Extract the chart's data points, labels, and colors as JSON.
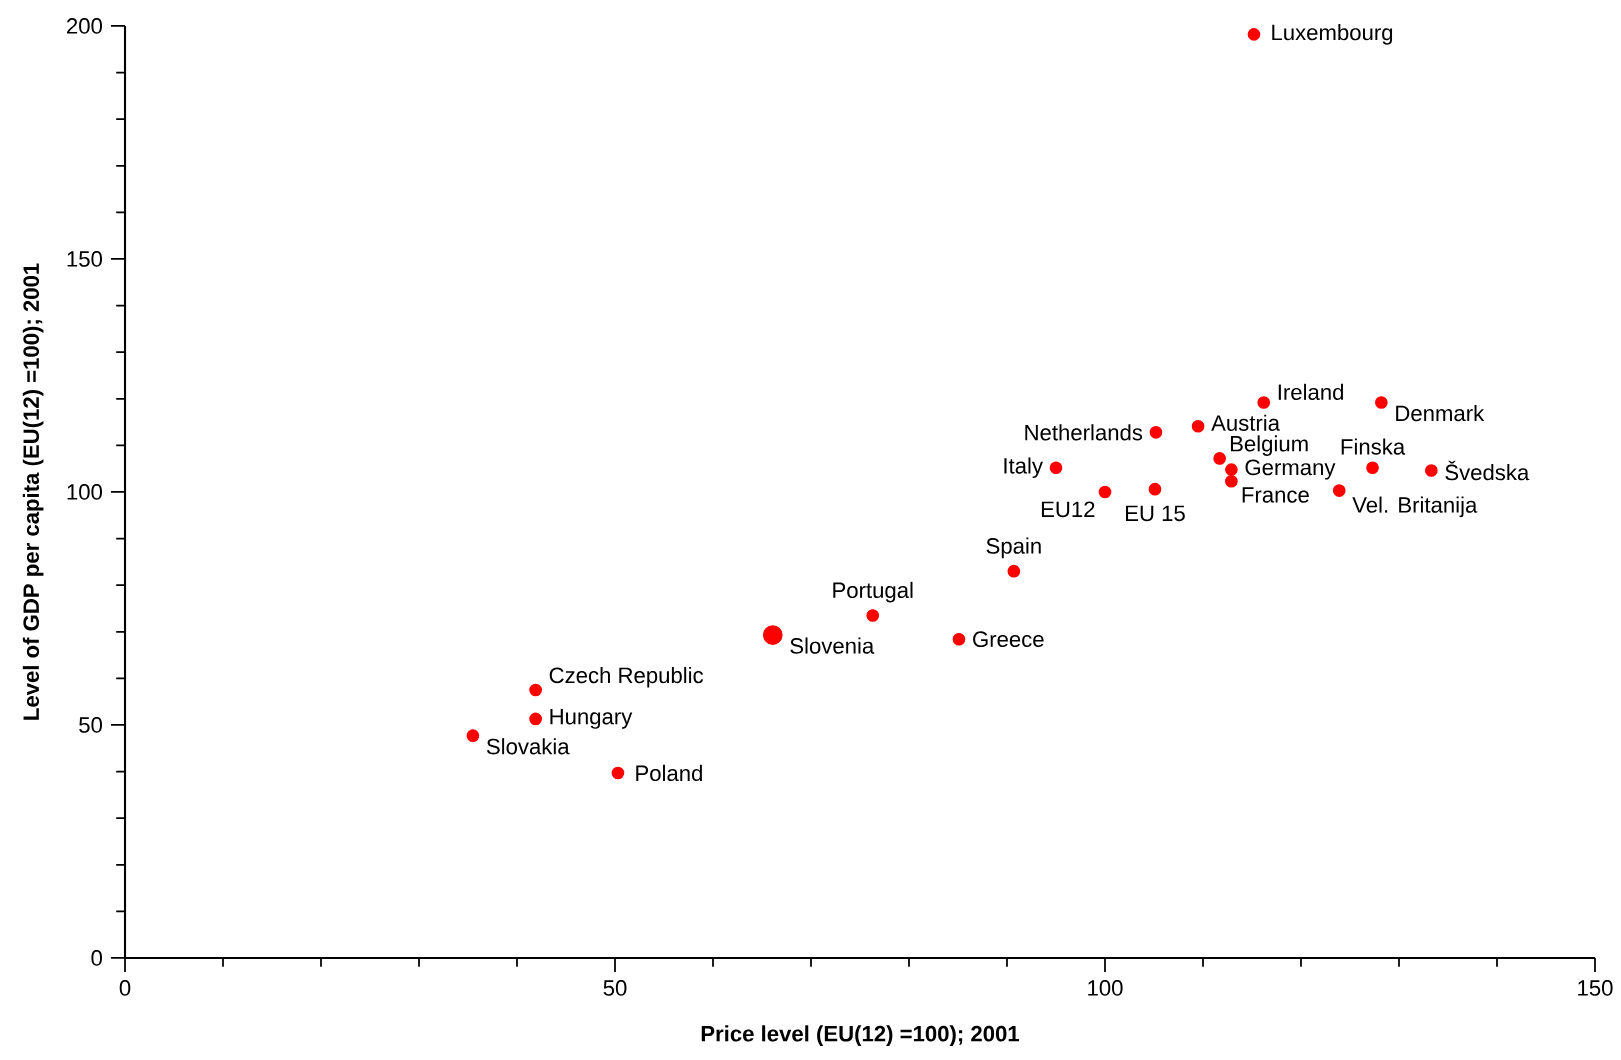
{
  "chart_data": {
    "type": "scatter",
    "xlabel": "Price level (EU(12) =100); 2001",
    "ylabel": "Level of GDP per capita (EU(12) =100); 2001",
    "xlim": [
      0,
      150
    ],
    "ylim": [
      0,
      200
    ],
    "xticks": [
      0,
      50,
      100,
      150
    ],
    "yticks": [
      0,
      50,
      100,
      150,
      200
    ],
    "grid": false,
    "series": [
      {
        "color": "#ff0000",
        "x": [
          115.2,
          116.2,
          128.2,
          105.2,
          109.5,
          111.7,
          112.9,
          112.9,
          127.3,
          133.3,
          123.9,
          95.0,
          100.0,
          105.1,
          90.7,
          76.3,
          85.1,
          41.9,
          41.9,
          35.5,
          50.3
        ],
        "values": [
          198.2,
          119.2,
          119.2,
          112.8,
          114.1,
          107.2,
          104.8,
          102.3,
          105.2,
          104.6,
          100.3,
          105.2,
          100.0,
          100.6,
          83.0,
          73.5,
          68.4,
          57.5,
          51.3,
          47.7,
          39.7
        ]
      },
      {
        "color": "#ff0000",
        "x": [
          66.1
        ],
        "values": [
          69.3
        ]
      }
    ],
    "annotations": [
      {
        "text": "Luxembourg",
        "x": 115.2,
        "y": 198.2
      },
      {
        "text": "Ireland",
        "x": 116.2,
        "y": 119.2
      },
      {
        "text": "Denmark",
        "x": 128.2,
        "y": 119.2
      },
      {
        "text": "Netherlands",
        "x": 105.2,
        "y": 112.8
      },
      {
        "text": "Austria",
        "x": 109.5,
        "y": 114.1
      },
      {
        "text": "Belgium",
        "x": 111.7,
        "y": 107.2
      },
      {
        "text": "Germany",
        "x": 112.9,
        "y": 104.8
      },
      {
        "text": "France",
        "x": 112.9,
        "y": 102.3
      },
      {
        "text": "Finska",
        "x": 127.3,
        "y": 105.2
      },
      {
        "text": "Švedska",
        "x": 133.3,
        "y": 104.6
      },
      {
        "text": "Vel. Britanija",
        "x": 123.9,
        "y": 100.3
      },
      {
        "text": "Italy",
        "x": 95.0,
        "y": 105.2
      },
      {
        "text": "EU12",
        "x": 100.0,
        "y": 100.0
      },
      {
        "text": "EU 15",
        "x": 105.1,
        "y": 100.6
      },
      {
        "text": "Spain",
        "x": 90.7,
        "y": 83.0
      },
      {
        "text": "Portugal",
        "x": 76.3,
        "y": 73.5
      },
      {
        "text": "Greece",
        "x": 85.1,
        "y": 68.4
      },
      {
        "text": "Czech Republic",
        "x": 41.9,
        "y": 57.5
      },
      {
        "text": "Hungary",
        "x": 41.9,
        "y": 51.3
      },
      {
        "text": "Slovakia",
        "x": 35.5,
        "y": 47.7
      },
      {
        "text": "Poland",
        "x": 50.3,
        "y": 39.7
      },
      {
        "text": "Slovenia",
        "x": 66.1,
        "y": 69.3
      }
    ]
  }
}
